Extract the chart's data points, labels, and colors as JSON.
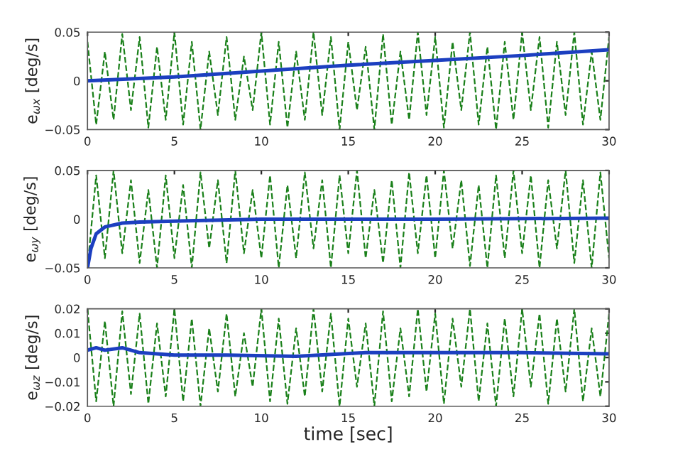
{
  "chart_data": [
    {
      "type": "line",
      "ylabel": "e$_{ωx}$ [deg/s]",
      "xlim": [
        0,
        30
      ],
      "xticks": [
        0,
        5,
        10,
        15,
        20,
        25,
        30
      ],
      "ylim": [
        -0.05,
        0.05
      ],
      "yticks": [
        {
          "value": -0.05,
          "label": "−0.05"
        },
        0,
        0.05
      ],
      "grid": false,
      "legend": false,
      "series": [
        {
          "color": "#1a801a",
          "line_style": "dashed",
          "x": [
            0,
            0.5,
            1,
            1.5,
            2,
            2.5,
            3,
            3.5,
            4,
            4.5,
            5,
            5.5,
            6,
            6.5,
            7,
            7.5,
            8,
            8.5,
            9,
            9.5,
            10,
            10.5,
            11,
            11.5,
            12,
            12.5,
            13,
            13.5,
            14,
            14.5,
            15,
            15.5,
            16,
            16.5,
            17,
            17.5,
            18,
            18.5,
            19,
            19.5,
            20,
            20.5,
            21,
            21.5,
            22,
            22.5,
            23,
            23.5,
            24,
            24.5,
            25,
            25.5,
            26,
            26.5,
            27,
            27.5,
            28,
            28.5,
            29,
            29.5,
            30
          ],
          "values": [
            0.04,
            -0.045,
            0.03,
            -0.04,
            0.048,
            -0.03,
            0.045,
            -0.048,
            0.035,
            -0.04,
            0.05,
            -0.045,
            0.04,
            -0.05,
            0.03,
            -0.035,
            0.045,
            -0.04,
            0.025,
            -0.03,
            0.05,
            -0.045,
            0.04,
            -0.048,
            0.03,
            -0.04,
            0.05,
            -0.035,
            0.045,
            -0.05,
            0.04,
            -0.03,
            0.035,
            -0.05,
            0.048,
            -0.045,
            0.03,
            -0.04,
            0.05,
            -0.035,
            0.045,
            -0.048,
            0.04,
            -0.03,
            0.05,
            -0.045,
            0.035,
            -0.05,
            0.04,
            -0.04,
            0.05,
            -0.03,
            0.045,
            -0.048,
            0.04,
            -0.035,
            0.05,
            -0.045,
            0.03,
            -0.04,
            0.045
          ]
        },
        {
          "color": "#1c3fc0",
          "line_style": "solid",
          "x": [
            0,
            5,
            10,
            15,
            20,
            25,
            30
          ],
          "values": [
            0,
            0.004,
            0.01,
            0.016,
            0.021,
            0.026,
            0.032
          ]
        }
      ]
    },
    {
      "type": "line",
      "ylabel": "e$_{ωy}$ [deg/s]",
      "xlim": [
        0,
        30
      ],
      "xticks": [
        0,
        5,
        10,
        15,
        20,
        25,
        30
      ],
      "ylim": [
        -0.05,
        0.05
      ],
      "yticks": [
        {
          "value": -0.05,
          "label": "−0.05"
        },
        0,
        0.05
      ],
      "grid": false,
      "legend": false,
      "series": [
        {
          "color": "#1a801a",
          "line_style": "dashed",
          "x": [
            0,
            0.5,
            1,
            1.5,
            2,
            2.5,
            3,
            3.5,
            4,
            4.5,
            5,
            5.5,
            6,
            6.5,
            7,
            7.5,
            8,
            8.5,
            9,
            9.5,
            10,
            10.5,
            11,
            11.5,
            12,
            12.5,
            13,
            13.5,
            14,
            14.5,
            15,
            15.5,
            16,
            16.5,
            17,
            17.5,
            18,
            18.5,
            19,
            19.5,
            20,
            20.5,
            21,
            21.5,
            22,
            22.5,
            23,
            23.5,
            24,
            24.5,
            25,
            25.5,
            26,
            26.5,
            27,
            27.5,
            28,
            28.5,
            29,
            29.5,
            30
          ],
          "values": [
            -0.05,
            0.045,
            -0.04,
            0.05,
            -0.035,
            0.04,
            -0.045,
            0.03,
            -0.05,
            0.045,
            -0.04,
            0.035,
            -0.05,
            0.048,
            -0.03,
            0.04,
            -0.045,
            0.05,
            -0.035,
            0.03,
            -0.04,
            0.045,
            -0.05,
            0.035,
            -0.04,
            0.048,
            -0.03,
            0.04,
            -0.05,
            0.045,
            -0.035,
            0.05,
            -0.04,
            0.03,
            -0.045,
            0.04,
            -0.05,
            0.048,
            -0.035,
            0.045,
            -0.04,
            0.05,
            -0.03,
            0.04,
            -0.048,
            0.035,
            -0.05,
            0.045,
            -0.04,
            0.05,
            -0.035,
            0.045,
            -0.05,
            0.04,
            -0.03,
            0.05,
            -0.045,
            0.04,
            -0.05,
            0.048,
            -0.04
          ]
        },
        {
          "color": "#1c3fc0",
          "line_style": "solid",
          "x": [
            0,
            0.2,
            0.5,
            1,
            2,
            3,
            5,
            10,
            20,
            30
          ],
          "values": [
            -0.05,
            -0.03,
            -0.015,
            -0.008,
            -0.004,
            -0.003,
            -0.002,
            0,
            0,
            0.001
          ]
        }
      ]
    },
    {
      "type": "line",
      "ylabel": "e$_{ωz}$ [deg/s]",
      "xlabel": "time [sec]",
      "xlim": [
        0,
        30
      ],
      "xticks": [
        0,
        5,
        10,
        15,
        20,
        25,
        30
      ],
      "ylim": [
        -0.02,
        0.02
      ],
      "yticks": [
        {
          "value": -0.02,
          "label": "−0.02"
        },
        {
          "value": -0.01,
          "label": "−0.01"
        },
        0,
        0.01,
        0.02
      ],
      "grid": false,
      "legend": false,
      "series": [
        {
          "color": "#1a801a",
          "line_style": "dashed",
          "x": [
            0,
            0.5,
            1,
            1.5,
            2,
            2.5,
            3,
            3.5,
            4,
            4.5,
            5,
            5.5,
            6,
            6.5,
            7,
            7.5,
            8,
            8.5,
            9,
            9.5,
            10,
            10.5,
            11,
            11.5,
            12,
            12.5,
            13,
            13.5,
            14,
            14.5,
            15,
            15.5,
            16,
            16.5,
            17,
            17.5,
            18,
            18.5,
            19,
            19.5,
            20,
            20.5,
            21,
            21.5,
            22,
            22.5,
            23,
            23.5,
            24,
            24.5,
            25,
            25.5,
            26,
            26.5,
            27,
            27.5,
            28,
            28.5,
            29,
            29.5,
            30
          ],
          "values": [
            0.02,
            -0.018,
            0.015,
            -0.02,
            0.019,
            -0.015,
            0.018,
            -0.019,
            0.014,
            -0.016,
            0.02,
            -0.018,
            0.016,
            -0.02,
            0.012,
            -0.014,
            0.018,
            -0.016,
            0.01,
            -0.012,
            0.02,
            -0.018,
            0.016,
            -0.019,
            0.012,
            -0.016,
            0.02,
            -0.014,
            0.018,
            -0.02,
            0.016,
            -0.012,
            0.014,
            -0.02,
            0.019,
            -0.018,
            0.012,
            -0.016,
            0.02,
            -0.014,
            0.018,
            -0.019,
            0.016,
            -0.012,
            0.02,
            -0.018,
            0.014,
            -0.02,
            0.016,
            -0.016,
            0.02,
            -0.012,
            0.018,
            -0.019,
            0.016,
            -0.014,
            0.02,
            -0.018,
            0.012,
            -0.016,
            0.018
          ]
        },
        {
          "color": "#1c3fc0",
          "line_style": "solid",
          "x": [
            0,
            0.5,
            1,
            2,
            3,
            5,
            8,
            12,
            16,
            20,
            25,
            30
          ],
          "values": [
            0.003,
            0.004,
            0.003,
            0.004,
            0.002,
            0.001,
            0.001,
            0.0005,
            0.002,
            0.002,
            0.002,
            0.0015
          ]
        }
      ]
    }
  ]
}
